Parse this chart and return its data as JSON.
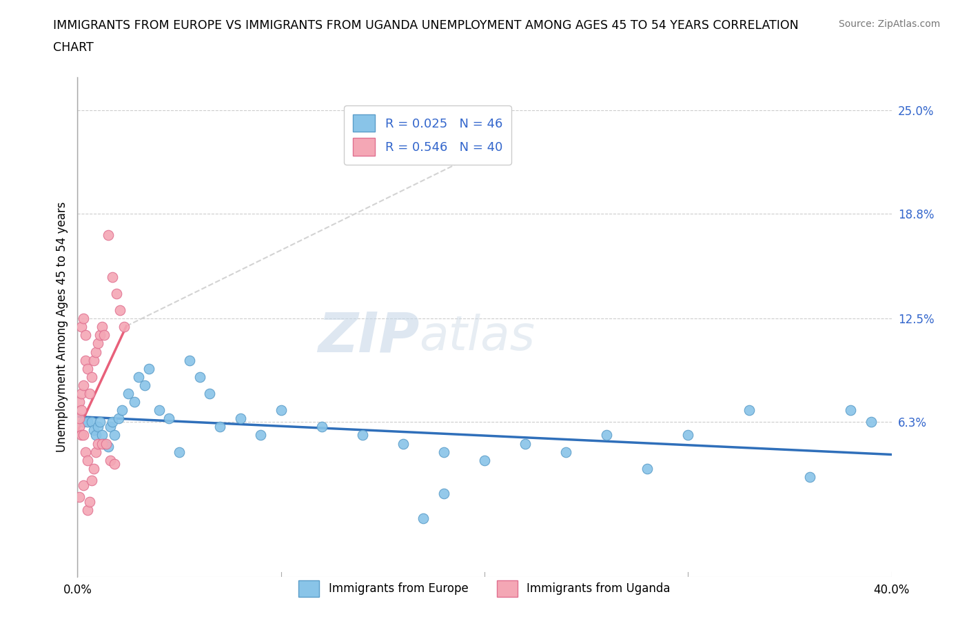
{
  "title_line1": "IMMIGRANTS FROM EUROPE VS IMMIGRANTS FROM UGANDA UNEMPLOYMENT AMONG AGES 45 TO 54 YEARS CORRELATION",
  "title_line2": "CHART",
  "source": "Source: ZipAtlas.com",
  "ylabel": "Unemployment Among Ages 45 to 54 years",
  "xlabel_europe": "Immigrants from Europe",
  "xlabel_uganda": "Immigrants from Uganda",
  "xlim": [
    0.0,
    0.4
  ],
  "ylim": [
    -0.03,
    0.27
  ],
  "R_europe": 0.025,
  "N_europe": 46,
  "R_uganda": 0.546,
  "N_uganda": 40,
  "color_europe": "#89c4e8",
  "color_uganda": "#f4a7b5",
  "edge_europe": "#5b9dc9",
  "edge_uganda": "#e07090",
  "trendline_europe_color": "#2f6fba",
  "trendline_uganda_color": "#e8607a",
  "europe_x": [
    0.003,
    0.005,
    0.007,
    0.008,
    0.009,
    0.01,
    0.011,
    0.012,
    0.013,
    0.015,
    0.016,
    0.017,
    0.018,
    0.02,
    0.022,
    0.025,
    0.028,
    0.03,
    0.033,
    0.035,
    0.04,
    0.045,
    0.05,
    0.055,
    0.06,
    0.065,
    0.07,
    0.08,
    0.09,
    0.1,
    0.12,
    0.14,
    0.16,
    0.18,
    0.2,
    0.22,
    0.24,
    0.26,
    0.28,
    0.3,
    0.18,
    0.33,
    0.36,
    0.38,
    0.39,
    0.17
  ],
  "europe_y": [
    0.063,
    0.063,
    0.063,
    0.058,
    0.055,
    0.06,
    0.063,
    0.055,
    0.05,
    0.048,
    0.06,
    0.063,
    0.055,
    0.065,
    0.07,
    0.08,
    0.075,
    0.09,
    0.085,
    0.095,
    0.07,
    0.065,
    0.045,
    0.1,
    0.09,
    0.08,
    0.06,
    0.065,
    0.055,
    0.07,
    0.06,
    0.055,
    0.05,
    0.045,
    0.04,
    0.05,
    0.045,
    0.055,
    0.035,
    0.055,
    0.02,
    0.07,
    0.03,
    0.07,
    0.063,
    0.005
  ],
  "uganda_x": [
    0.001,
    0.002,
    0.003,
    0.004,
    0.005,
    0.006,
    0.007,
    0.008,
    0.009,
    0.01,
    0.011,
    0.012,
    0.013,
    0.015,
    0.017,
    0.019,
    0.021,
    0.023,
    0.001,
    0.002,
    0.003,
    0.004,
    0.005,
    0.002,
    0.003,
    0.004,
    0.001,
    0.002,
    0.003,
    0.001,
    0.005,
    0.006,
    0.007,
    0.008,
    0.009,
    0.01,
    0.012,
    0.014,
    0.016,
    0.018
  ],
  "uganda_y": [
    0.075,
    0.08,
    0.085,
    0.1,
    0.095,
    0.08,
    0.09,
    0.1,
    0.105,
    0.11,
    0.115,
    0.12,
    0.115,
    0.175,
    0.15,
    0.14,
    0.13,
    0.12,
    0.06,
    0.055,
    0.055,
    0.045,
    0.04,
    0.12,
    0.125,
    0.115,
    0.065,
    0.07,
    0.025,
    0.018,
    0.01,
    0.015,
    0.028,
    0.035,
    0.045,
    0.05,
    0.05,
    0.05,
    0.04,
    0.038
  ],
  "trendline_uganda_x0": 0.0,
  "trendline_uganda_x1": 0.024,
  "trendline_europe_x0": 0.0,
  "trendline_europe_x1": 0.4
}
